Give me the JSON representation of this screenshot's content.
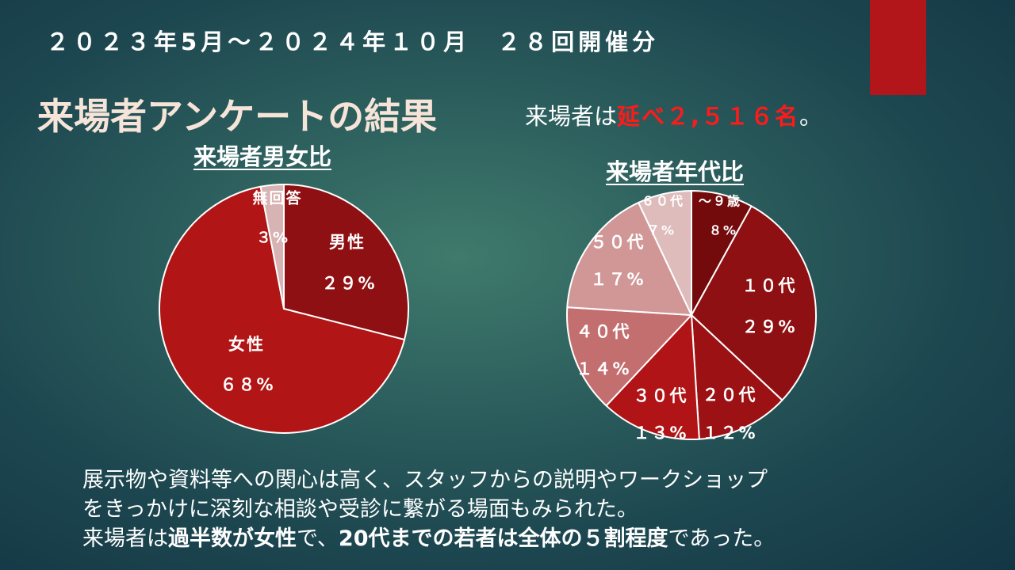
{
  "header": {
    "period": "２０２３年5月～２０２４年１０月　２８回開催分",
    "title": "来場者アンケートの結果",
    "visitors_prefix": "来場者は",
    "visitors_highlight": "延べ２,５１６名",
    "visitors_suffix": "。"
  },
  "description": {
    "line1": "展示物や資料等への関心は高く、スタッフからの説明やワークショップ",
    "line2": "をきっかけに深刻な相談や受診に繋がる場面もみられた。",
    "line3_a": "来場者は",
    "line3_b": "過半数が女性",
    "line3_c": "で、",
    "line3_d": "20代までの若者は全体の５割程度",
    "line3_e": "であった。"
  },
  "colors": {
    "accent_red": "#b3161a",
    "highlight_red": "#ff1a1a",
    "title_color": "#f6e4d8"
  },
  "chart_data": [
    {
      "type": "pie",
      "title": "来場者男女比",
      "start_angle_deg": 0,
      "slices": [
        {
          "name": "男性",
          "value": 29,
          "label": "２９%",
          "color": "#8e1012"
        },
        {
          "name": "女性",
          "value": 68,
          "label": "６８%",
          "color": "#b11515"
        },
        {
          "name": "無回答",
          "value": 3,
          "label": "３%",
          "color": "#d7b3b3"
        }
      ]
    },
    {
      "type": "pie",
      "title": "来場者年代比",
      "start_angle_deg": 0,
      "slices": [
        {
          "name": "～９歳",
          "value": 8,
          "label": "８%",
          "color": "#730b0d"
        },
        {
          "name": "１０代",
          "value": 29,
          "label": "２９%",
          "color": "#8e1012"
        },
        {
          "name": "２０代",
          "value": 12,
          "label": "１２%",
          "color": "#9b1114"
        },
        {
          "name": "３０代",
          "value": 13,
          "label": "１３%",
          "color": "#b01417"
        },
        {
          "name": "４０代",
          "value": 14,
          "label": "１４%",
          "color": "#c46f6f"
        },
        {
          "name": "５０代",
          "value": 17,
          "label": "１７%",
          "color": "#d19797"
        },
        {
          "name": "６０代",
          "value": 7,
          "label": "７%",
          "color": "#dfbcbc"
        }
      ]
    }
  ]
}
